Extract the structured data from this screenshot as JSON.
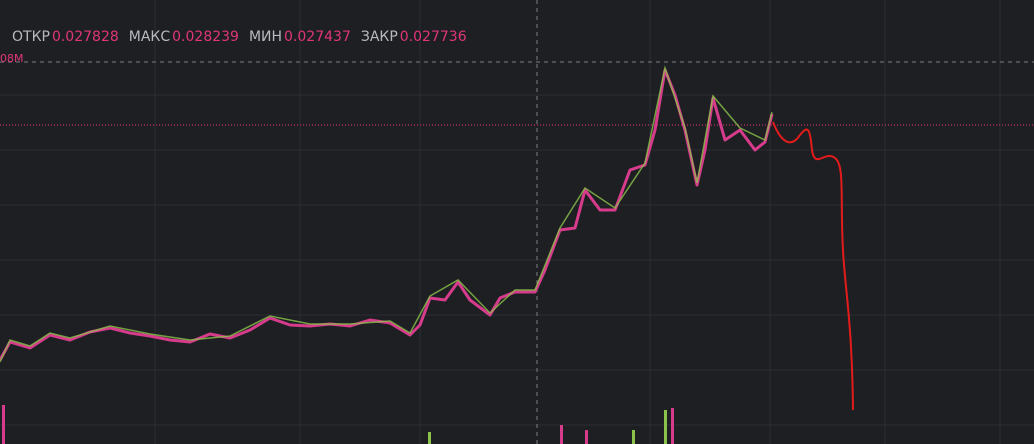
{
  "ohlc": [
    {
      "label": "ОТКР",
      "value": "0.027828"
    },
    {
      "label": "МАКС",
      "value": "0.028239"
    },
    {
      "label": "МИН",
      "value": "0.027437"
    },
    {
      "label": "ЗАКР",
      "value": "0.027736"
    }
  ],
  "volume_label": "08M"
}
